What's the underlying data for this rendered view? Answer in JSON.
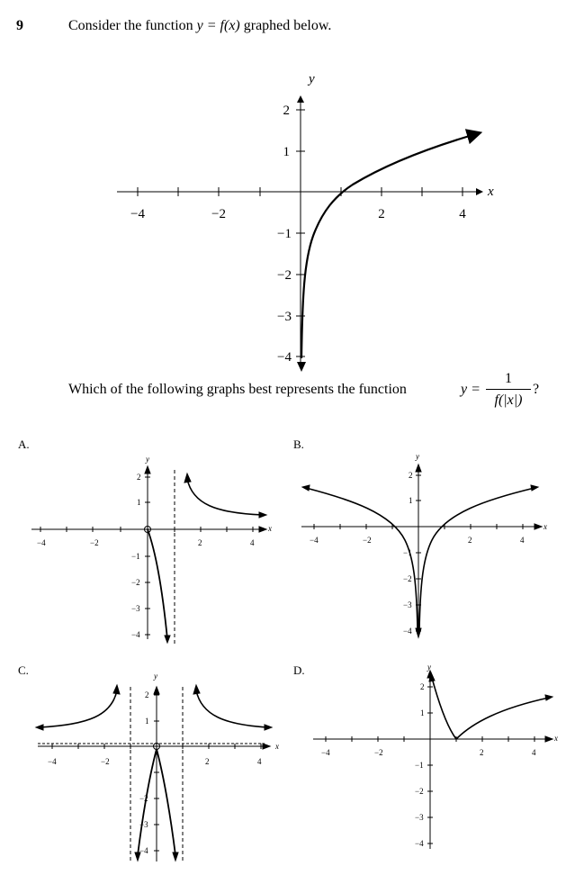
{
  "question": {
    "number": "9",
    "intro_before": "Consider the function ",
    "intro_func": "y = f(x)",
    "intro_after": " graphed below.",
    "which_text": "Which of the following graphs best represents the function",
    "func_lhs": "y =",
    "func_num": "1",
    "func_den": "f(|x|)",
    "end_mark": "?"
  },
  "main_graph": {
    "x_axis_label": "x",
    "y_axis_label": "y",
    "x_ticks": [
      "−4",
      "−2",
      "2",
      "4"
    ],
    "y_ticks_pos": [
      "1",
      "2"
    ],
    "y_ticks_neg": [
      "−1",
      "−2",
      "−3",
      "−4"
    ]
  },
  "options": {
    "A": {
      "label": "A."
    },
    "B": {
      "label": "B."
    },
    "C": {
      "label": "C."
    },
    "D": {
      "label": "D."
    }
  },
  "chart_data": [
    {
      "type": "line",
      "panel": "main",
      "xlabel": "x",
      "ylabel": "y",
      "xlim": [
        -4,
        4
      ],
      "ylim": [
        -4,
        2
      ],
      "series": [
        {
          "x": [
            0.02,
            0.1,
            0.3,
            0.5,
            0.8,
            1,
            1.5,
            2,
            3,
            4.5
          ],
          "y": [
            -4,
            -2.8,
            -1.3,
            -0.7,
            -0.2,
            0,
            0.4,
            0.69,
            1.1,
            1.5
          ]
        }
      ]
    },
    {
      "type": "line",
      "panel": "A",
      "xlim": [
        -4,
        4
      ],
      "ylim": [
        -4,
        2
      ],
      "asymptote_x": 1
    },
    {
      "type": "line",
      "panel": "B",
      "xlim": [
        -4,
        4
      ],
      "ylim": [
        -4,
        2
      ]
    },
    {
      "type": "line",
      "panel": "C",
      "xlim": [
        -4,
        4
      ],
      "ylim": [
        -4,
        2
      ],
      "asymptote_x": [
        -1,
        1
      ],
      "asymptote_y": 0
    },
    {
      "type": "line",
      "panel": "D",
      "xlim": [
        -4,
        4
      ],
      "ylim": [
        -4,
        2
      ]
    }
  ]
}
